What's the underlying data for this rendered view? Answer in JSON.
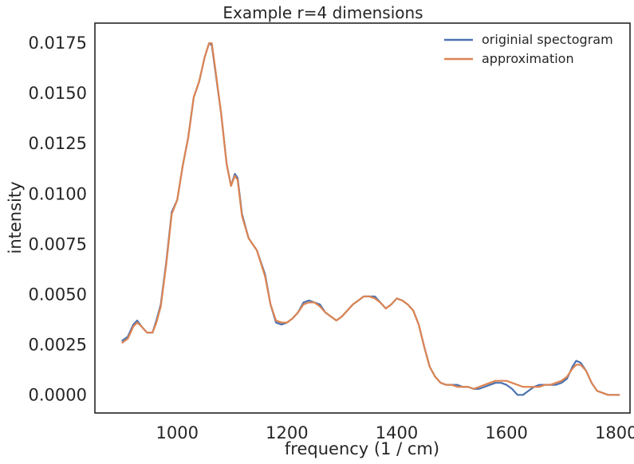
{
  "chart_data": {
    "type": "line",
    "title": "Example r=4 dimensions",
    "xlabel": "frequency (1 / cm)",
    "ylabel": "intensity",
    "xlim": [
      850,
      1825
    ],
    "ylim": [
      -0.0009,
      0.0185
    ],
    "xticks": [
      1000,
      1200,
      1400,
      1600,
      1800
    ],
    "yticks": [
      0.0,
      0.0025,
      0.005,
      0.0075,
      0.01,
      0.0125,
      0.015,
      0.0175
    ],
    "ytick_labels": [
      "0.0000",
      "0.0025",
      "0.0050",
      "0.0075",
      "0.0100",
      "0.0125",
      "0.0150",
      "0.0175"
    ],
    "grid": false,
    "legend": "top-right",
    "series": [
      {
        "name": "originial spectogram",
        "color": "#4c72b0",
        "x": [
          900,
          910,
          920,
          927,
          935,
          945,
          955,
          962,
          970,
          980,
          990,
          1000,
          1010,
          1020,
          1030,
          1040,
          1050,
          1058,
          1063,
          1070,
          1080,
          1090,
          1098,
          1105,
          1110,
          1118,
          1130,
          1145,
          1160,
          1170,
          1180,
          1190,
          1200,
          1210,
          1220,
          1230,
          1240,
          1250,
          1260,
          1270,
          1280,
          1290,
          1300,
          1310,
          1320,
          1330,
          1340,
          1350,
          1360,
          1370,
          1380,
          1390,
          1400,
          1410,
          1420,
          1430,
          1440,
          1450,
          1460,
          1470,
          1480,
          1490,
          1500,
          1510,
          1520,
          1530,
          1540,
          1550,
          1560,
          1570,
          1580,
          1590,
          1600,
          1610,
          1620,
          1630,
          1640,
          1650,
          1660,
          1670,
          1680,
          1690,
          1700,
          1710,
          1720,
          1727,
          1735,
          1745,
          1755,
          1765,
          1775,
          1785,
          1795,
          1805
        ],
        "y": [
          0.0027,
          0.0029,
          0.0035,
          0.0037,
          0.0034,
          0.0031,
          0.0031,
          0.0037,
          0.0045,
          0.0066,
          0.0091,
          0.0097,
          0.0114,
          0.0128,
          0.0148,
          0.0156,
          0.0168,
          0.0175,
          0.0174,
          0.016,
          0.014,
          0.0115,
          0.0104,
          0.011,
          0.0108,
          0.009,
          0.0078,
          0.0072,
          0.006,
          0.0045,
          0.0036,
          0.0035,
          0.0036,
          0.0038,
          0.0041,
          0.0046,
          0.0047,
          0.0046,
          0.0045,
          0.0041,
          0.0039,
          0.0037,
          0.0039,
          0.0042,
          0.0045,
          0.0047,
          0.0049,
          0.0049,
          0.0049,
          0.0046,
          0.0043,
          0.0045,
          0.0048,
          0.0047,
          0.0045,
          0.0042,
          0.0035,
          0.0024,
          0.0014,
          0.0009,
          0.0006,
          0.0005,
          0.0005,
          0.0005,
          0.0004,
          0.0004,
          0.0003,
          0.0003,
          0.0004,
          0.0005,
          0.0006,
          0.0006,
          0.0005,
          0.0003,
          0.0,
          0.0,
          0.0002,
          0.0004,
          0.0005,
          0.0005,
          0.0005,
          0.0005,
          0.0006,
          0.0008,
          0.0014,
          0.0017,
          0.0016,
          0.0012,
          0.0006,
          0.0002,
          0.0001,
          0.0,
          0.0,
          0.0
        ]
      },
      {
        "name": "approximation",
        "color": "#dd8452",
        "x": [
          900,
          910,
          920,
          927,
          935,
          945,
          955,
          962,
          970,
          980,
          990,
          1000,
          1010,
          1020,
          1030,
          1040,
          1050,
          1058,
          1063,
          1070,
          1080,
          1090,
          1098,
          1105,
          1110,
          1118,
          1130,
          1145,
          1160,
          1170,
          1180,
          1190,
          1200,
          1210,
          1220,
          1230,
          1240,
          1250,
          1260,
          1270,
          1280,
          1290,
          1300,
          1310,
          1320,
          1330,
          1340,
          1350,
          1360,
          1370,
          1380,
          1390,
          1400,
          1410,
          1420,
          1430,
          1440,
          1450,
          1460,
          1470,
          1480,
          1490,
          1500,
          1510,
          1520,
          1530,
          1540,
          1550,
          1560,
          1570,
          1580,
          1590,
          1600,
          1610,
          1620,
          1630,
          1640,
          1650,
          1660,
          1670,
          1680,
          1690,
          1700,
          1710,
          1720,
          1727,
          1735,
          1745,
          1755,
          1765,
          1775,
          1785,
          1795,
          1805
        ],
        "y": [
          0.0026,
          0.0028,
          0.0034,
          0.0036,
          0.0034,
          0.0031,
          0.0031,
          0.0036,
          0.0044,
          0.0065,
          0.009,
          0.0097,
          0.0114,
          0.0128,
          0.0148,
          0.0156,
          0.0168,
          0.0175,
          0.0175,
          0.0161,
          0.014,
          0.0115,
          0.0104,
          0.0109,
          0.0107,
          0.0089,
          0.0078,
          0.0072,
          0.0059,
          0.0045,
          0.0037,
          0.0036,
          0.0036,
          0.0038,
          0.0041,
          0.0045,
          0.0046,
          0.0046,
          0.0044,
          0.0041,
          0.0039,
          0.0037,
          0.0039,
          0.0042,
          0.0045,
          0.0047,
          0.0049,
          0.0049,
          0.0048,
          0.0046,
          0.0043,
          0.0045,
          0.0048,
          0.0047,
          0.0045,
          0.0042,
          0.0035,
          0.0024,
          0.0014,
          0.0009,
          0.0006,
          0.0005,
          0.0005,
          0.0004,
          0.0004,
          0.0004,
          0.0003,
          0.0004,
          0.0005,
          0.0006,
          0.0007,
          0.0007,
          0.0007,
          0.0006,
          0.0005,
          0.0004,
          0.0004,
          0.0004,
          0.0004,
          0.0005,
          0.0005,
          0.0006,
          0.0007,
          0.0009,
          0.0013,
          0.0015,
          0.0015,
          0.0012,
          0.0006,
          0.0002,
          0.0001,
          0.0,
          0.0,
          0.0
        ]
      }
    ]
  }
}
